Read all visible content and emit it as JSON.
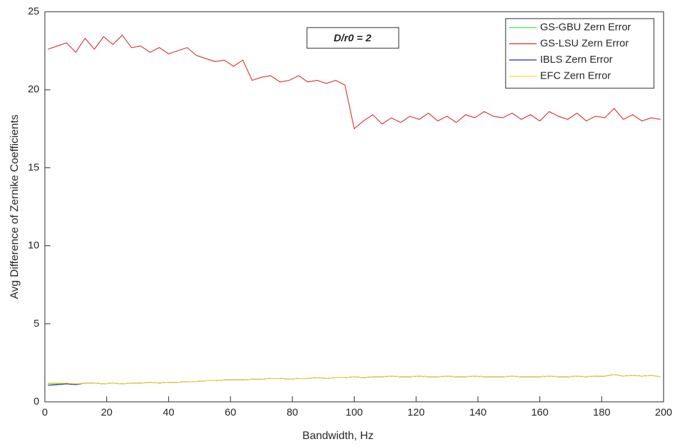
{
  "chart_data": {
    "type": "line",
    "xlabel": "Bandwidth, Hz",
    "ylabel": "Avg Difference of Zernike Coefficients",
    "annotation": "D/r0 = 2",
    "xlim": [
      0,
      200
    ],
    "xticks": [
      0,
      20,
      40,
      60,
      80,
      100,
      120,
      140,
      160,
      180,
      200
    ],
    "ylim": [
      0,
      25
    ],
    "yticks": [
      0,
      5,
      10,
      15,
      20,
      25
    ],
    "legend": "upper right",
    "box": true,
    "x": [
      1,
      4,
      7,
      10,
      13,
      16,
      19,
      22,
      25,
      28,
      31,
      34,
      37,
      40,
      43,
      46,
      49,
      52,
      55,
      58,
      61,
      64,
      67,
      70,
      73,
      76,
      79,
      82,
      85,
      88,
      91,
      94,
      97,
      100,
      103,
      106,
      109,
      112,
      115,
      118,
      121,
      124,
      127,
      130,
      133,
      136,
      139,
      142,
      145,
      148,
      151,
      154,
      157,
      160,
      163,
      166,
      169,
      172,
      175,
      178,
      181,
      184,
      187,
      190,
      193,
      196,
      199
    ],
    "series": [
      {
        "name": "GS-GBU Zern Error",
        "color": "#4cd24c",
        "values": [
          1.15,
          1.15,
          1.2,
          1.15,
          1.2,
          1.2,
          1.15,
          1.2,
          1.15,
          1.2,
          1.2,
          1.25,
          1.2,
          1.25,
          1.25,
          1.3,
          1.3,
          1.35,
          1.35,
          1.4,
          1.4,
          1.4,
          1.45,
          1.45,
          1.5,
          1.5,
          1.45,
          1.5,
          1.5,
          1.55,
          1.5,
          1.55,
          1.55,
          1.6,
          1.55,
          1.6,
          1.6,
          1.65,
          1.6,
          1.6,
          1.65,
          1.6,
          1.6,
          1.65,
          1.6,
          1.6,
          1.65,
          1.6,
          1.6,
          1.6,
          1.65,
          1.6,
          1.6,
          1.6,
          1.65,
          1.6,
          1.6,
          1.65,
          1.6,
          1.65,
          1.65,
          1.75,
          1.65,
          1.7,
          1.65,
          1.7,
          1.6
        ]
      },
      {
        "name": "GS-LSU Zern Error",
        "color": "#d42a2a",
        "values": [
          22.6,
          22.8,
          23.0,
          22.4,
          23.3,
          22.6,
          23.4,
          22.9,
          23.5,
          22.7,
          22.8,
          22.4,
          22.7,
          22.3,
          22.5,
          22.7,
          22.2,
          22.0,
          21.8,
          21.9,
          21.5,
          21.9,
          20.6,
          20.8,
          20.9,
          20.5,
          20.6,
          20.9,
          20.5,
          20.6,
          20.4,
          20.6,
          20.3,
          17.5,
          18.0,
          18.4,
          17.8,
          18.2,
          17.9,
          18.3,
          18.1,
          18.5,
          18.0,
          18.3,
          17.9,
          18.4,
          18.2,
          18.6,
          18.3,
          18.2,
          18.5,
          18.1,
          18.4,
          18.0,
          18.6,
          18.3,
          18.1,
          18.5,
          18.0,
          18.3,
          18.2,
          18.8,
          18.1,
          18.4,
          18.0,
          18.2,
          18.1
        ]
      },
      {
        "name": "IBLS Zern Error",
        "color": "#2020b0",
        "values": [
          1.05,
          1.1,
          1.15,
          1.1,
          1.2,
          1.2,
          1.15,
          1.2,
          1.15,
          1.2,
          1.2,
          1.25,
          1.2,
          1.25,
          1.25,
          1.3,
          1.3,
          1.35,
          1.35,
          1.4,
          1.4,
          1.4,
          1.45,
          1.45,
          1.5,
          1.5,
          1.45,
          1.5,
          1.5,
          1.55,
          1.5,
          1.55,
          1.55,
          1.6,
          1.55,
          1.6,
          1.6,
          1.65,
          1.6,
          1.6,
          1.65,
          1.6,
          1.6,
          1.65,
          1.6,
          1.6,
          1.65,
          1.6,
          1.6,
          1.6,
          1.65,
          1.6,
          1.6,
          1.6,
          1.65,
          1.6,
          1.6,
          1.65,
          1.6,
          1.65,
          1.65,
          1.75,
          1.65,
          1.7,
          1.65,
          1.7,
          1.6
        ]
      },
      {
        "name": "EFC Zern Error",
        "color": "#f2e030",
        "values": [
          1.2,
          1.2,
          1.2,
          1.15,
          1.2,
          1.2,
          1.15,
          1.2,
          1.15,
          1.2,
          1.2,
          1.25,
          1.2,
          1.25,
          1.25,
          1.3,
          1.3,
          1.35,
          1.35,
          1.4,
          1.4,
          1.4,
          1.45,
          1.45,
          1.5,
          1.5,
          1.45,
          1.5,
          1.5,
          1.55,
          1.5,
          1.55,
          1.55,
          1.6,
          1.55,
          1.6,
          1.6,
          1.65,
          1.6,
          1.6,
          1.65,
          1.6,
          1.6,
          1.65,
          1.6,
          1.6,
          1.65,
          1.6,
          1.6,
          1.6,
          1.65,
          1.6,
          1.6,
          1.6,
          1.65,
          1.6,
          1.6,
          1.65,
          1.6,
          1.65,
          1.65,
          1.75,
          1.65,
          1.7,
          1.65,
          1.7,
          1.6
        ]
      }
    ]
  }
}
